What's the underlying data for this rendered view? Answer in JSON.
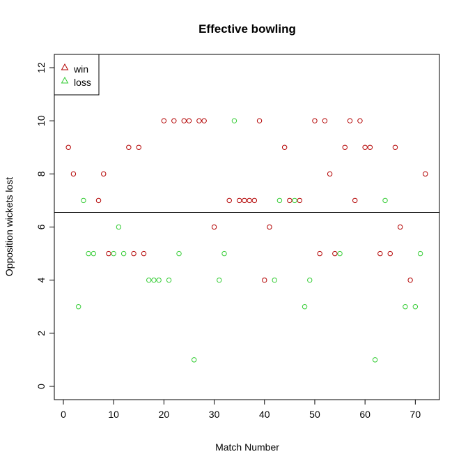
{
  "chart_data": {
    "type": "scatter",
    "title": "Effective bowling",
    "xlabel": "Match Number",
    "ylabel": "Opposition wickets lost",
    "xlim": [
      -1.8,
      74.8
    ],
    "ylim": [
      -0.5,
      12.5
    ],
    "xticks": [
      0,
      10,
      20,
      30,
      40,
      50,
      60,
      70
    ],
    "yticks": [
      0,
      2,
      4,
      6,
      8,
      10,
      12
    ],
    "hline": 6.55,
    "legend_position": "top-left",
    "series": [
      {
        "name": "win",
        "color": "#b30000",
        "x": [
          1,
          2,
          7,
          8,
          9,
          13,
          14,
          15,
          16,
          20,
          22,
          24,
          25,
          27,
          28,
          30,
          33,
          35,
          36,
          37,
          38,
          39,
          40,
          41,
          44,
          45,
          47,
          50,
          51,
          52,
          53,
          54,
          56,
          57,
          58,
          59,
          60,
          61,
          63,
          65,
          66,
          67,
          69,
          72
        ],
        "y": [
          9,
          8,
          7,
          8,
          5,
          9,
          5,
          9,
          5,
          10,
          10,
          10,
          10,
          10,
          10,
          6,
          7,
          7,
          7,
          7,
          7,
          10,
          4,
          6,
          9,
          7,
          7,
          10,
          5,
          10,
          8,
          5,
          9,
          10,
          7,
          10,
          9,
          9,
          5,
          5,
          9,
          6,
          4,
          8
        ]
      },
      {
        "name": "loss",
        "color": "#33cc33",
        "x": [
          3,
          4,
          5,
          6,
          10,
          11,
          12,
          17,
          18,
          19,
          21,
          23,
          26,
          31,
          32,
          34,
          42,
          43,
          46,
          48,
          49,
          55,
          62,
          64,
          68,
          70,
          71
        ],
        "y": [
          3,
          7,
          5,
          5,
          5,
          6,
          5,
          4,
          4,
          4,
          4,
          5,
          1,
          4,
          5,
          10,
          4,
          7,
          7,
          3,
          4,
          5,
          1,
          7,
          3,
          3,
          5
        ]
      }
    ]
  }
}
